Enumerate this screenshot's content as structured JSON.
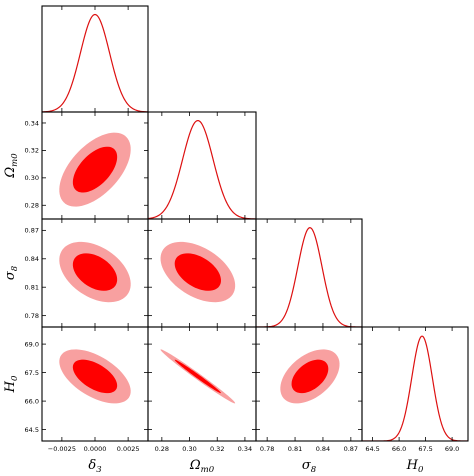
{
  "chart_data": {
    "type": "corner",
    "colors": {
      "inner_fill": "#ff0000",
      "outer_fill": "#f8a0a0",
      "line": "#dd1111"
    },
    "parameters": [
      {
        "key": "delta3",
        "label": "δ",
        "sub": "3",
        "mean": 0.0,
        "sd": 0.0011,
        "range": [
          -0.004,
          0.004
        ],
        "ticks": [
          -0.0025,
          0.0,
          0.0025
        ],
        "tick_labels": [
          "−0.0025",
          "0.0000",
          "0.0025"
        ]
      },
      {
        "key": "omega_m0",
        "label": "Ω",
        "sub": "m0",
        "mean": 0.306,
        "sd": 0.011,
        "range": [
          0.27,
          0.348
        ],
        "ticks": [
          0.28,
          0.3,
          0.32,
          0.34
        ],
        "tick_labels": [
          "0.28",
          "0.30",
          "0.32",
          "0.34"
        ]
      },
      {
        "key": "sigma8",
        "label": "σ",
        "sub": "8",
        "mean": 0.826,
        "sd": 0.013,
        "range": [
          0.768,
          0.882
        ],
        "ticks": [
          0.78,
          0.81,
          0.84,
          0.87
        ],
        "tick_labels": [
          "0.78",
          "0.81",
          "0.84",
          "0.87"
        ]
      },
      {
        "key": "H0",
        "label": "H",
        "sub": "0",
        "mean": 67.3,
        "sd": 0.58,
        "range": [
          63.9,
          69.9
        ],
        "ticks": [
          64.5,
          66.0,
          67.5,
          69.0
        ],
        "tick_labels": [
          "64.5",
          "66.0",
          "67.5",
          "69.0"
        ]
      }
    ],
    "correlations": [
      {
        "pair": [
          "delta3",
          "omega_m0"
        ],
        "rho": 0.55
      },
      {
        "pair": [
          "delta3",
          "sigma8"
        ],
        "rho": -0.4
      },
      {
        "pair": [
          "omega_m0",
          "sigma8"
        ],
        "rho": -0.45
      },
      {
        "pair": [
          "delta3",
          "H0"
        ],
        "rho": -0.55
      },
      {
        "pair": [
          "omega_m0",
          "H0"
        ],
        "rho": -0.99
      },
      {
        "pair": [
          "sigma8",
          "H0"
        ],
        "rho": 0.45
      }
    ],
    "contour_levels": [
      "68%",
      "95%"
    ]
  }
}
